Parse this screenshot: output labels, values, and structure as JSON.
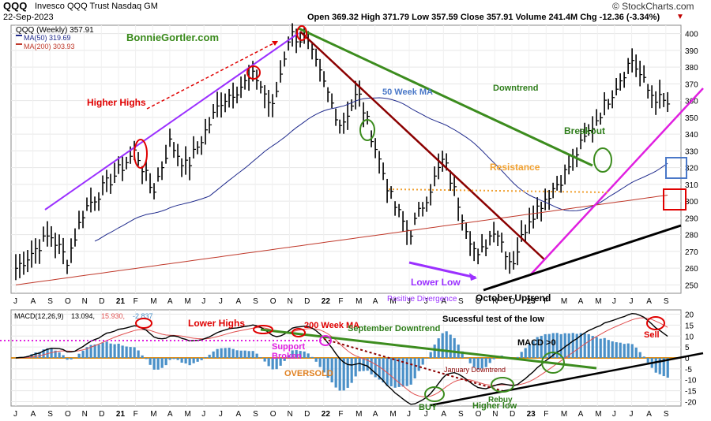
{
  "header": {
    "symbol": "QQQ",
    "name": "Invesco QQQ Trust  Nasdaq GM",
    "date": "22-Sep-2023",
    "watermark": "© StockCharts.com",
    "ohlc": "Open 369.32  High 371.79  Low 357.59  Close 357.91  Volume 241.4M  Chg -12.36 (-3.34%)",
    "ohlc_arrow": "▼"
  },
  "price_panel": {
    "legend_main": "QQQ (Weekly) 357.91",
    "legend_ma50": "MA(50) 319.69",
    "legend_ma200": "MA(200) 303.93",
    "y_ticks": [
      250,
      260,
      270,
      280,
      290,
      300,
      310,
      320,
      330,
      340,
      350,
      360,
      370,
      380,
      390,
      400
    ]
  },
  "macd_panel": {
    "legend_label": "MACD(12,26,9)",
    "legend_macd": "13.094,",
    "legend_signal": "15.930,",
    "legend_hist": "-2.837",
    "y_ticks": [
      -20,
      -15,
      -10,
      -5,
      0,
      5,
      10,
      15,
      20
    ]
  },
  "x_axis": {
    "labels": [
      "J",
      "A",
      "S",
      "O",
      "N",
      "D",
      "21",
      "F",
      "M",
      "A",
      "M",
      "J",
      "J",
      "A",
      "S",
      "O",
      "N",
      "D",
      "22",
      "F",
      "M",
      "A",
      "M",
      "J",
      "J",
      "A",
      "S",
      "O",
      "N",
      "D",
      "23",
      "F",
      "M",
      "A",
      "M",
      "J",
      "J",
      "A",
      "S"
    ]
  },
  "annotations": {
    "price": [
      {
        "text": "BonnieGortler.com",
        "color": "#3a8a1c"
      },
      {
        "text": "Higher Highs",
        "color": "#e00000"
      },
      {
        "text": "50 Week MA",
        "color": "#4a78c8"
      },
      {
        "text": "Downtrend",
        "color": "#2e7d1a"
      },
      {
        "text": "Breakout",
        "color": "#2e7d1a"
      },
      {
        "text": "Resistance",
        "color": "#f0a030"
      },
      {
        "text": "Lower Low",
        "color": "#9b30ff"
      },
      {
        "text": "Positive Divergence",
        "color": "#9b30ff"
      },
      {
        "text": "October Uptrend",
        "color": "#000000"
      }
    ],
    "macd": [
      {
        "text": "Lower Highs",
        "color": "#e00000"
      },
      {
        "text": "200 Week MA",
        "color": "#e00000"
      },
      {
        "text": "Support",
        "color": "#e020e0"
      },
      {
        "text": "Broken",
        "color": "#e020e0"
      },
      {
        "text": "September Downtrend",
        "color": "#2e7d1a"
      },
      {
        "text": "Sucessful test of the low",
        "color": "#000000"
      },
      {
        "text": "MACD >0",
        "color": "#000000"
      },
      {
        "text": "Sell",
        "color": "#e00000"
      },
      {
        "text": "OVERSOLD",
        "color": "#e08020"
      },
      {
        "text": "January Downtrend",
        "color": "#8b0000"
      },
      {
        "text": "BUY",
        "color": "#2e7d1a"
      },
      {
        "text": "Rebuy",
        "color": "#2e7d1a"
      },
      {
        "text": "Higher low",
        "color": "#2e7d1a"
      }
    ]
  },
  "colors": {
    "price_bars": "#000000",
    "ma50": "#1f2a8c",
    "ma200": "#c0392b",
    "macd_line": "#000000",
    "signal_line": "#e05050",
    "histogram": "#4a90c8",
    "green_trend": "#3c8c1e",
    "red_trend": "#8b0000",
    "magenta_trend": "#e020e0",
    "purple": "#9b30ff",
    "black_trend": "#000000",
    "resistance": "#f0a030"
  },
  "chart_data": {
    "type": "line",
    "price_anchors": [
      {
        "x": "2020-07",
        "close": 260
      },
      {
        "x": "2020-09",
        "close": 280
      },
      {
        "x": "2020-10",
        "close": 265
      },
      {
        "x": "2020-11",
        "close": 295
      },
      {
        "x": "2021-01",
        "close": 318
      },
      {
        "x": "2021-02",
        "close": 330
      },
      {
        "x": "2021-03",
        "close": 305
      },
      {
        "x": "2021-04",
        "close": 335
      },
      {
        "x": "2021-05",
        "close": 320
      },
      {
        "x": "2021-07",
        "close": 360
      },
      {
        "x": "2021-09",
        "close": 375
      },
      {
        "x": "2021-10",
        "close": 355
      },
      {
        "x": "2021-11",
        "close": 400
      },
      {
        "x": "2021-12",
        "close": 395
      },
      {
        "x": "2022-02",
        "close": 345
      },
      {
        "x": "2022-03",
        "close": 365
      },
      {
        "x": "2022-05",
        "close": 300
      },
      {
        "x": "2022-06",
        "close": 280
      },
      {
        "x": "2022-08",
        "close": 325
      },
      {
        "x": "2022-10",
        "close": 265
      },
      {
        "x": "2022-11",
        "close": 285
      },
      {
        "x": "2022-12",
        "close": 262
      },
      {
        "x": "2023-01",
        "close": 290
      },
      {
        "x": "2023-03",
        "close": 315
      },
      {
        "x": "2023-05",
        "close": 350
      },
      {
        "x": "2023-07",
        "close": 385
      },
      {
        "x": "2023-08",
        "close": 365
      },
      {
        "x": "2023-09",
        "close": 358
      }
    ],
    "ma50_endpoint": 319.69,
    "ma200_endpoint": 303.93,
    "macd_endpoint": 13.094,
    "signal_endpoint": 15.93,
    "histogram_endpoint": -2.837,
    "price_ylim": [
      245,
      405
    ],
    "macd_ylim": [
      -22,
      22
    ]
  }
}
